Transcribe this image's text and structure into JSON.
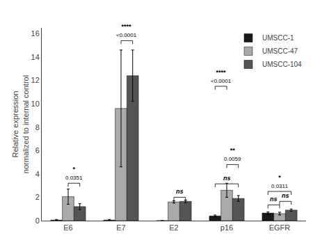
{
  "chart_data": {
    "type": "bar",
    "categories": [
      "E6",
      "E7",
      "E2",
      "p16",
      "EGFR"
    ],
    "series": [
      {
        "name": "UMSCC-1",
        "color": "#1a1a1a",
        "values": [
          0.05,
          0.05,
          0.0,
          0.4,
          0.65
        ],
        "errors": [
          0.05,
          0.05,
          0.0,
          0.08,
          0.1
        ]
      },
      {
        "name": "UMSCC-47",
        "color": "#aaaaaa",
        "values": [
          2.05,
          9.6,
          1.6,
          2.6,
          0.6
        ],
        "errors": [
          0.65,
          5.0,
          0.1,
          0.6,
          0.12
        ]
      },
      {
        "name": "UMSCC-104",
        "color": "#555555",
        "values": [
          1.2,
          12.4,
          1.65,
          1.9,
          0.9
        ],
        "errors": [
          0.25,
          2.2,
          0.1,
          0.25,
          0.1
        ]
      }
    ],
    "ylabel": "Relative expression\nnormalized to internal control",
    "ylim": [
      0,
      16.5
    ],
    "yticks": [
      0,
      2,
      4,
      6,
      8,
      10,
      12,
      14,
      16
    ],
    "grid": false,
    "legend": "upper right",
    "annotations": [
      {
        "category": "E6",
        "from": "UMSCC-47",
        "to": "UMSCC-104",
        "y": 3.2,
        "text": "0.0351",
        "stars": "*"
      },
      {
        "category": "E7",
        "from": "UMSCC-47",
        "to": "UMSCC-104",
        "y": 15.4,
        "text": "<0.0001",
        "stars": "****"
      },
      {
        "category": "E2",
        "from": "UMSCC-47",
        "to": "UMSCC-104",
        "y": 2.0,
        "text": "ns"
      },
      {
        "category": "p16",
        "from": "UMSCC-1",
        "to": "UMSCC-47",
        "y": 11.5,
        "text": "<0.0001",
        "stars": "****"
      },
      {
        "category": "p16",
        "from": "UMSCC-1",
        "to": "UMSCC-104",
        "y": 3.15,
        "text": "ns"
      },
      {
        "category": "p16",
        "from": "UMSCC-47",
        "to": "UMSCC-104",
        "y": 4.8,
        "text": "0.0059",
        "stars": "**"
      },
      {
        "category": "EGFR",
        "from": "UMSCC-1",
        "to": "UMSCC-104",
        "y": 2.5,
        "text": "0.0311",
        "stars": "*"
      },
      {
        "category": "EGFR",
        "from": "UMSCC-1",
        "to": "UMSCC-47",
        "y": 1.35,
        "text": "ns"
      },
      {
        "category": "EGFR",
        "from": "UMSCC-47",
        "to": "UMSCC-104",
        "y": 1.65,
        "text": "ns"
      }
    ]
  }
}
